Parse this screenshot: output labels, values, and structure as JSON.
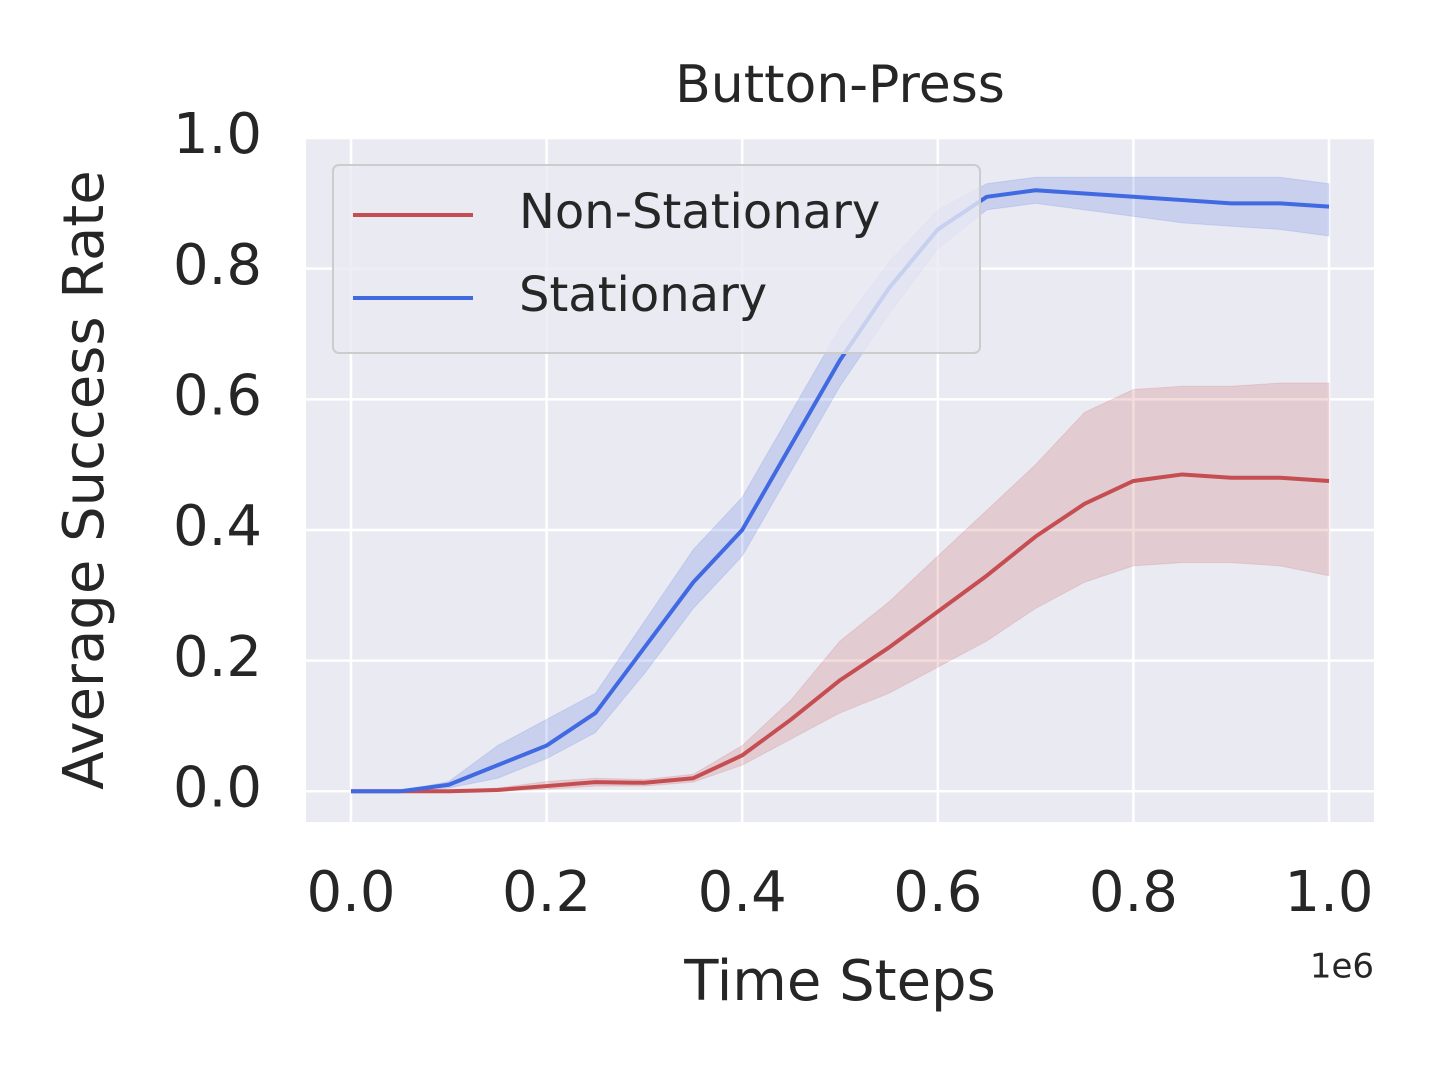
{
  "chart_data": {
    "type": "line",
    "title": "Button-Press",
    "xlabel": "Time Steps",
    "ylabel": "Average Success Rate",
    "x_offset_label": "1e6",
    "x": [
      0,
      0.05,
      0.1,
      0.15,
      0.2,
      0.25,
      0.3,
      0.35,
      0.4,
      0.45,
      0.5,
      0.55,
      0.6,
      0.65,
      0.7,
      0.75,
      0.8,
      0.85,
      0.9,
      0.95,
      1.0
    ],
    "series": [
      {
        "name": "Non-Stationary",
        "color": "#c44e52",
        "values": [
          0,
          0,
          0,
          0.002,
          0.008,
          0.014,
          0.013,
          0.02,
          0.055,
          0.11,
          0.17,
          0.22,
          0.275,
          0.33,
          0.39,
          0.44,
          0.475,
          0.485,
          0.48,
          0.48,
          0.475
        ],
        "lower": [
          0,
          0,
          0,
          0,
          0.003,
          0.008,
          0.008,
          0.014,
          0.04,
          0.08,
          0.12,
          0.15,
          0.19,
          0.23,
          0.28,
          0.32,
          0.345,
          0.35,
          0.35,
          0.345,
          0.33
        ],
        "upper": [
          0,
          0,
          0,
          0.005,
          0.015,
          0.02,
          0.018,
          0.026,
          0.07,
          0.14,
          0.23,
          0.29,
          0.36,
          0.43,
          0.5,
          0.58,
          0.615,
          0.62,
          0.62,
          0.625,
          0.625
        ]
      },
      {
        "name": "Stationary",
        "color": "#4169e1",
        "values": [
          0,
          0,
          0.01,
          0.04,
          0.07,
          0.12,
          0.22,
          0.32,
          0.4,
          0.53,
          0.66,
          0.77,
          0.86,
          0.91,
          0.92,
          0.915,
          0.91,
          0.905,
          0.9,
          0.9,
          0.895
        ],
        "lower": [
          0,
          0,
          0.005,
          0.02,
          0.05,
          0.09,
          0.18,
          0.28,
          0.36,
          0.49,
          0.62,
          0.73,
          0.83,
          0.89,
          0.9,
          0.89,
          0.88,
          0.87,
          0.865,
          0.86,
          0.85
        ],
        "upper": [
          0,
          0,
          0.015,
          0.07,
          0.11,
          0.15,
          0.26,
          0.37,
          0.45,
          0.58,
          0.71,
          0.81,
          0.89,
          0.93,
          0.94,
          0.94,
          0.94,
          0.94,
          0.94,
          0.94,
          0.93
        ]
      }
    ],
    "xlim": [
      -0.046,
      1.046
    ],
    "xticks": [
      {
        "value": 0,
        "label": "0.0"
      },
      {
        "value": 0.2,
        "label": "0.2"
      },
      {
        "value": 0.4,
        "label": "0.4"
      },
      {
        "value": 0.6,
        "label": "0.6"
      },
      {
        "value": 0.8,
        "label": "0.8"
      },
      {
        "value": 1.0,
        "label": "1.0"
      }
    ],
    "ylim": [
      -0.047,
      1.0
    ],
    "yticks": [
      {
        "value": 0,
        "label": "0.0"
      },
      {
        "value": 0.2,
        "label": "0.2"
      },
      {
        "value": 0.4,
        "label": "0.4"
      },
      {
        "value": 0.6,
        "label": "0.6"
      },
      {
        "value": 0.8,
        "label": "0.8"
      },
      {
        "value": 1.0,
        "label": "1.0"
      }
    ],
    "grid": true,
    "legend_position": "upper-left"
  }
}
